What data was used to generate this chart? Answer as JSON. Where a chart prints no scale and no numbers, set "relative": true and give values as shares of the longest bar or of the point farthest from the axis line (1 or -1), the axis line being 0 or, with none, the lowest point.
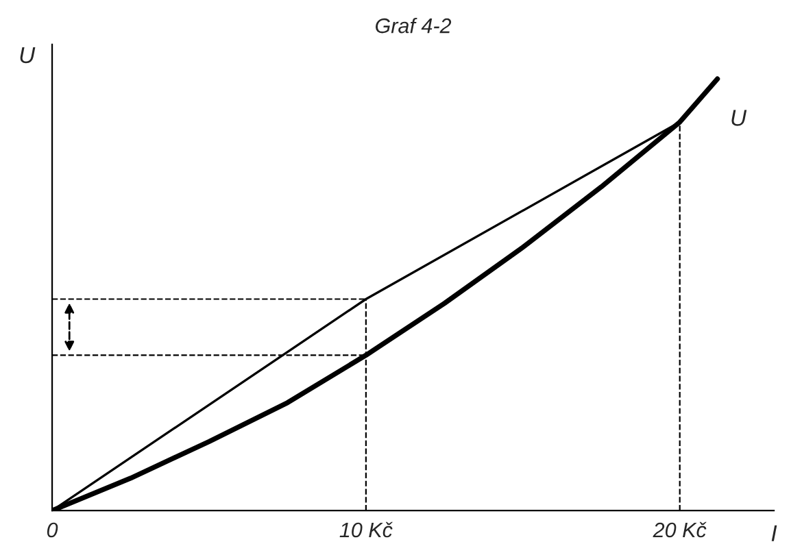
{
  "chart_data": {
    "type": "line",
    "title": "Graf 4-2",
    "xlabel": "I",
    "ylabel": "U",
    "relative": true,
    "xlim": [
      0,
      23
    ],
    "xticks": [
      {
        "value": 0,
        "label": "0"
      },
      {
        "value": 10,
        "label": "10 Kč"
      },
      {
        "value": 20,
        "label": "20 Kč"
      }
    ],
    "series": [
      {
        "color": "#000000",
        "x": [
          0,
          2.5,
          5,
          7.5,
          10,
          12.5,
          15,
          17.5,
          20,
          21.2
        ],
        "values": [
          0,
          0.075,
          0.16,
          0.25,
          0.36,
          0.48,
          0.61,
          0.75,
          0.9,
          1.0
        ]
      },
      {
        "color": "#000000",
        "x": [
          0,
          10,
          20
        ],
        "values": [
          0,
          0.49,
          0.9
        ]
      }
    ],
    "annotations": [
      "U"
    ],
    "ref_lines": [
      {
        "axis": "x",
        "value": 10,
        "line_style": "dashed"
      },
      {
        "axis": "x",
        "value": 20,
        "line_style": "dashed"
      },
      {
        "axis": "y",
        "value": 0.49,
        "line_style": "dashed"
      },
      {
        "axis": "y",
        "value": 0.36,
        "line_style": "dashed"
      }
    ],
    "grid": false,
    "legend": false,
    "marker": "none",
    "line_style": "solid"
  }
}
